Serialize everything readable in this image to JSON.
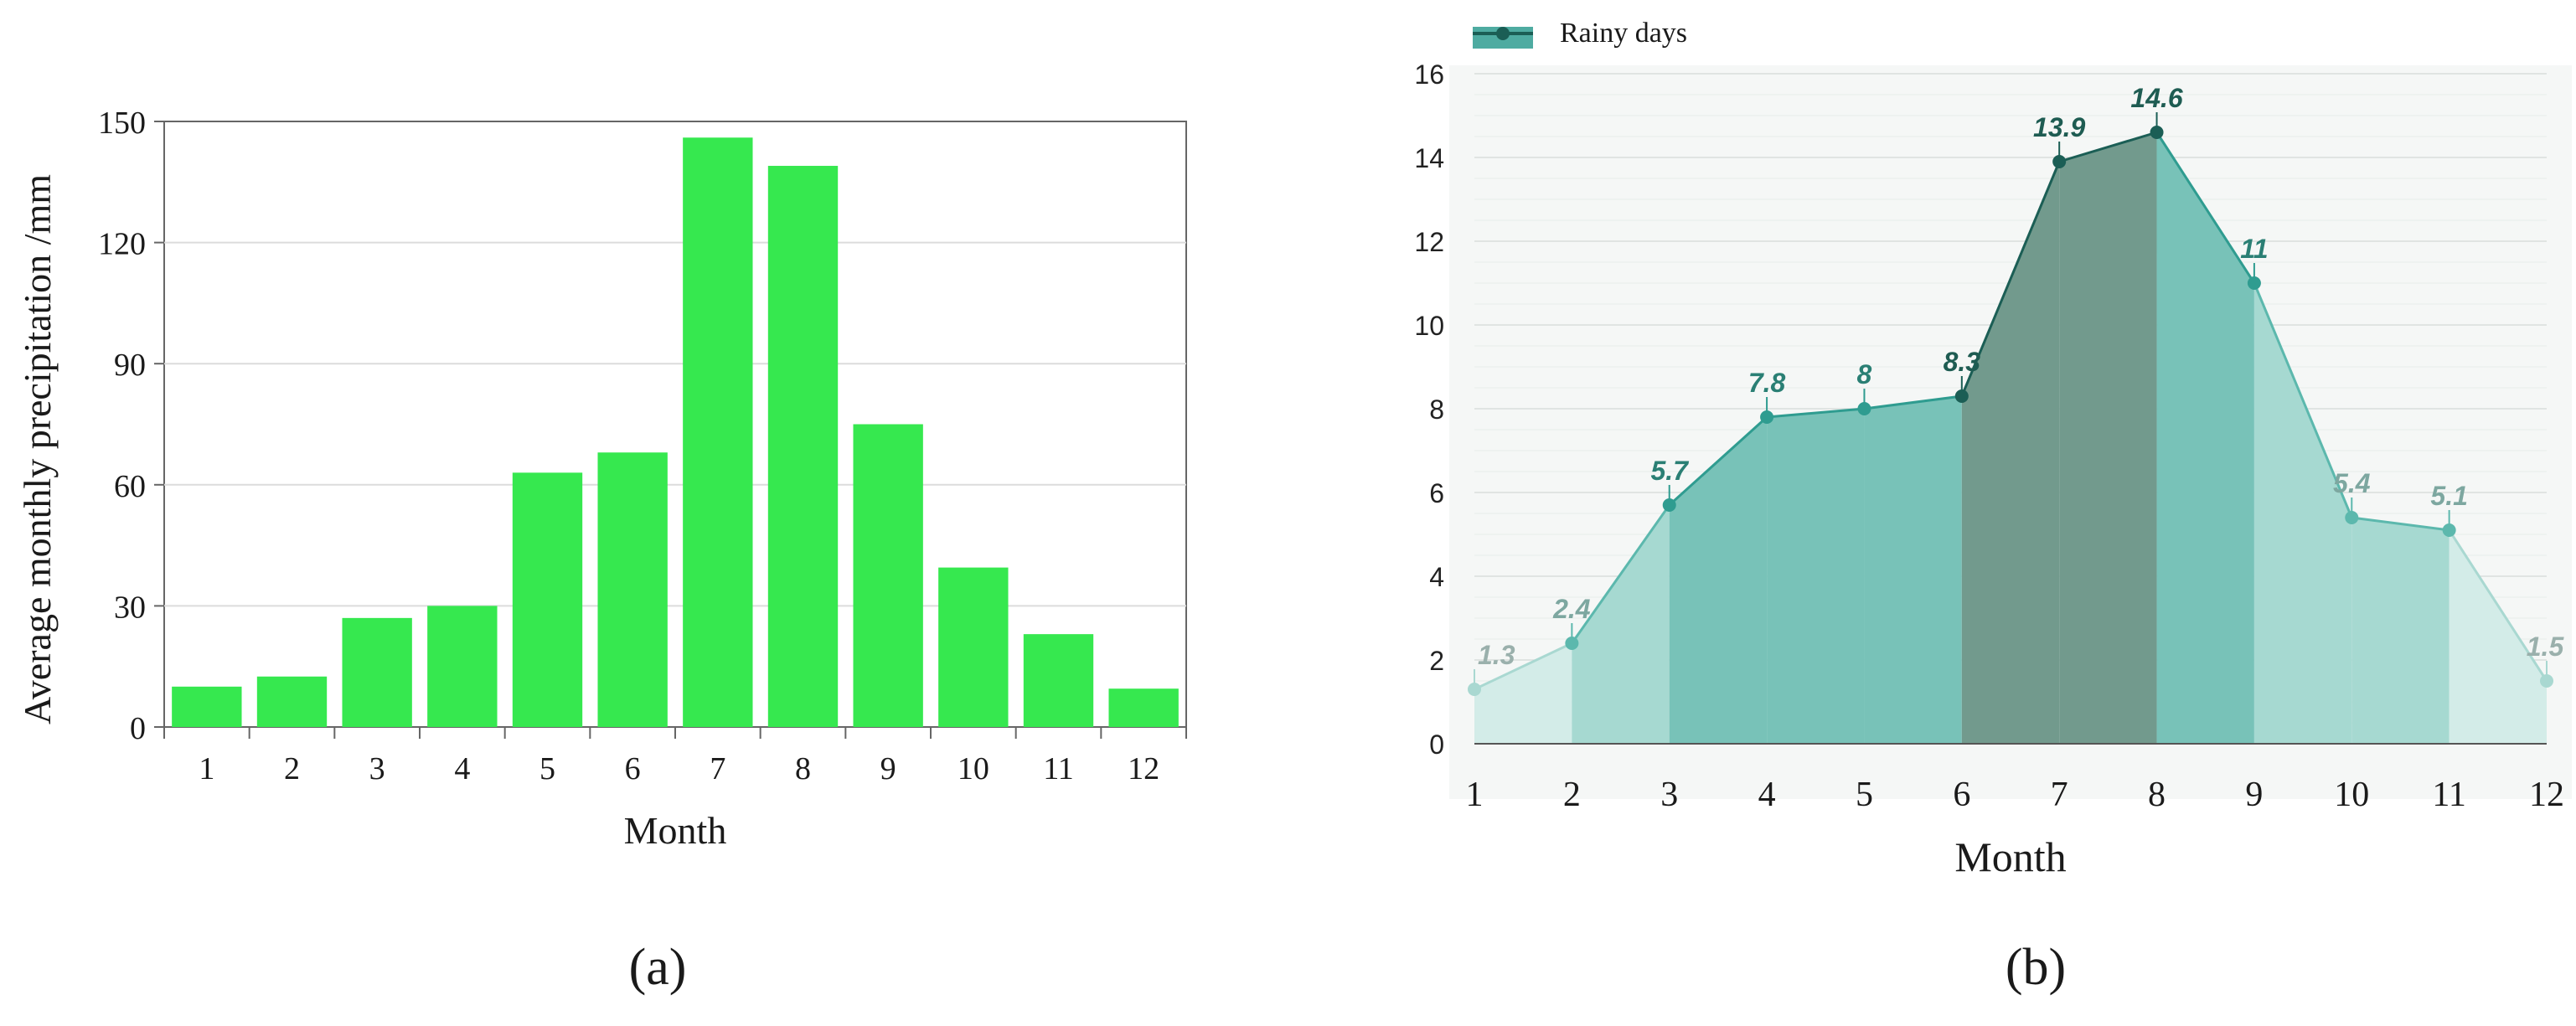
{
  "panels": {
    "a": {
      "caption": "(a)"
    },
    "b": {
      "caption": "(b)"
    }
  },
  "colors": {
    "bar": "#36e84f",
    "series_b_dark": "#1b5e55",
    "series_b_mid": "#2f9c90",
    "series_b_light": "#8fcfc6",
    "axis": "#666666",
    "grid": "#dcdcdc"
  },
  "chart_data": [
    {
      "id": "a",
      "type": "bar",
      "categories": [
        "1",
        "2",
        "3",
        "4",
        "5",
        "6",
        "7",
        "8",
        "9",
        "10",
        "11",
        "12"
      ],
      "values": [
        10,
        12.5,
        27,
        30,
        63,
        68,
        146,
        139,
        75,
        39.5,
        23,
        9.5
      ],
      "title": "",
      "xlabel": "Month",
      "ylabel": "Average monthly precipitation /mm",
      "ylim": [
        0,
        150
      ],
      "yticks": [
        0,
        30,
        60,
        90,
        120,
        150
      ],
      "grid": true
    },
    {
      "id": "b",
      "type": "area",
      "x": [
        1,
        2,
        3,
        4,
        5,
        6,
        7,
        8,
        9,
        10,
        11,
        12
      ],
      "x_ticks": [
        "1",
        "2",
        "3",
        "4",
        "5",
        "6",
        "7",
        "8",
        "9",
        "10",
        "11",
        "12"
      ],
      "series": [
        {
          "name": "Rainy days",
          "values": [
            1.3,
            2.4,
            5.7,
            7.8,
            8,
            8.3,
            13.9,
            14.6,
            11,
            5.4,
            5.1,
            1.5
          ],
          "labels": [
            "1.3",
            "2.4",
            "5.7",
            "7.8",
            "8",
            "8.3",
            "13.9",
            "14.6",
            "11",
            "5.4",
            "5.1",
            "1.5"
          ]
        }
      ],
      "title": "",
      "xlabel": "Month",
      "ylabel": "",
      "ylim": [
        0,
        16
      ],
      "yticks": [
        0,
        2,
        4,
        6,
        8,
        10,
        12,
        14,
        16
      ],
      "grid": true,
      "legend_position": "top-left"
    }
  ]
}
